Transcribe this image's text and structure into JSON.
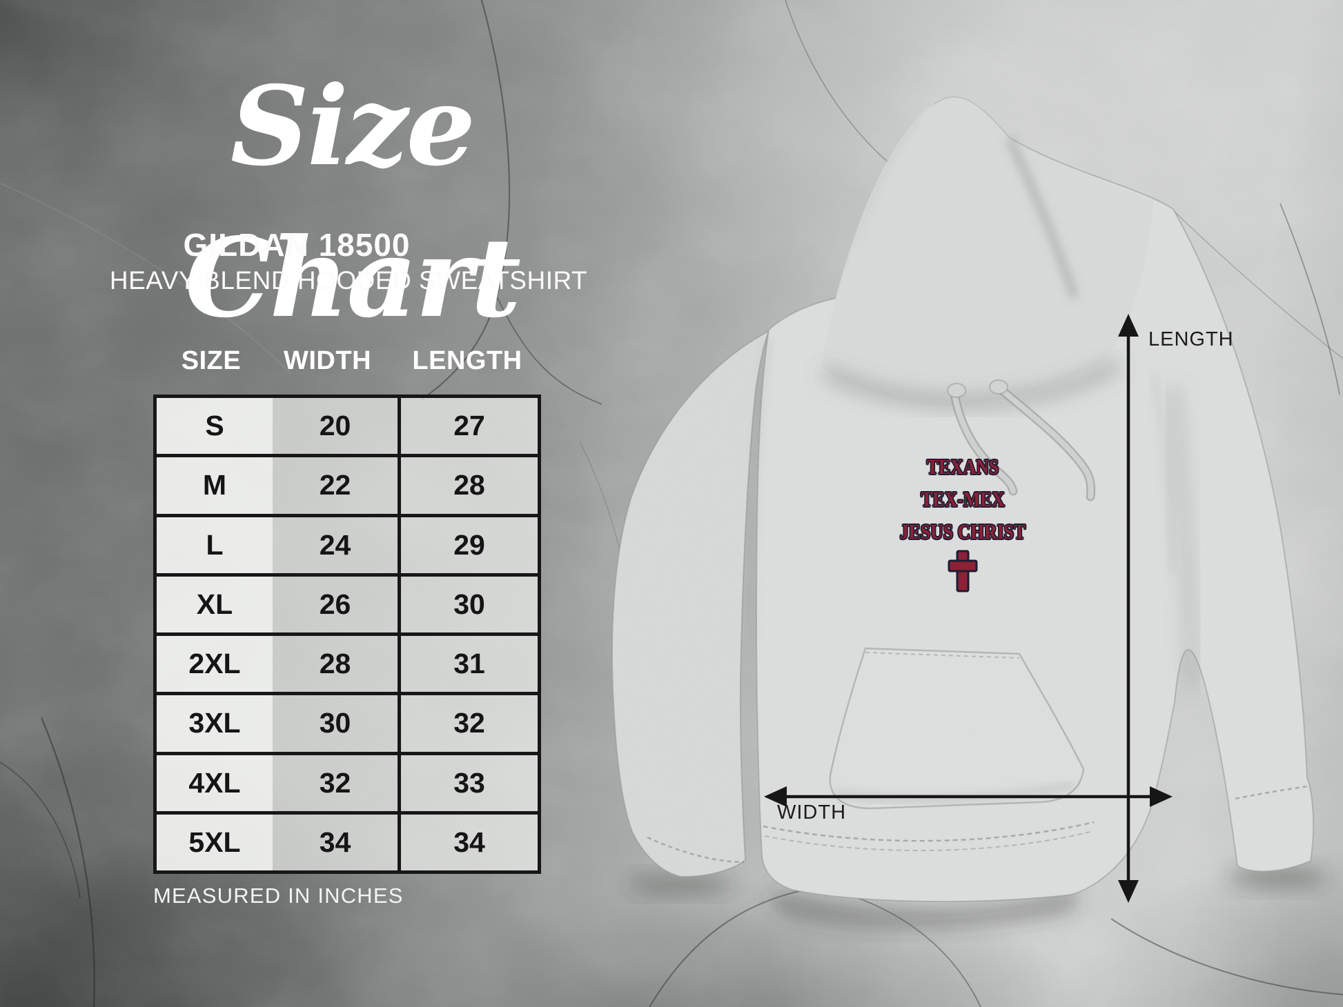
{
  "page": {
    "title": "Size Chart",
    "product_code": "GILDAN 18500",
    "product_name": "HEAVY BLEND HOODED SWEATSHIRT",
    "footnote": "MEASURED IN INCHES"
  },
  "chart_data": {
    "type": "table",
    "title": "Gildan 18500 Heavy Blend Hooded Sweatshirt size chart",
    "units": "inches",
    "columns": [
      "SIZE",
      "WIDTH",
      "LENGTH"
    ],
    "rows": [
      {
        "size": "S",
        "width": "20",
        "length": "27"
      },
      {
        "size": "M",
        "width": "22",
        "length": "28"
      },
      {
        "size": "L",
        "width": "24",
        "length": "29"
      },
      {
        "size": "XL",
        "width": "26",
        "length": "30"
      },
      {
        "size": "2XL",
        "width": "28",
        "length": "31"
      },
      {
        "size": "3XL",
        "width": "30",
        "length": "32"
      },
      {
        "size": "4XL",
        "width": "32",
        "length": "33"
      },
      {
        "size": "5XL",
        "width": "34",
        "length": "34"
      }
    ]
  },
  "diagram": {
    "length_label": "LENGTH",
    "width_label": "WIDTH",
    "print_lines": [
      "TEXANS",
      "TEX-MEX",
      "JESUS CHRIST"
    ],
    "print_icon": "latin-cross"
  },
  "colors": {
    "print_maroon": "#8e2136",
    "print_outline": "#1d1d32",
    "arrow_black": "#161616",
    "hoodie_gray": "#d8dad9",
    "table_border": "#171717"
  }
}
